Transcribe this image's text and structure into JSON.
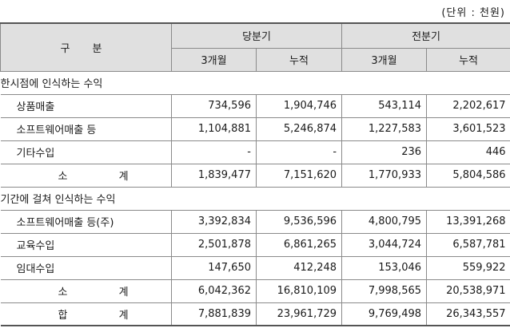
{
  "unit_note": "(단위 : 천원)",
  "header": {
    "gubun": "구 분",
    "current": "당분기",
    "prior": "전분기",
    "three_months": "3개월",
    "cumulative": "누적"
  },
  "sections": [
    {
      "title": "한시점에 인식하는 수익",
      "rows": [
        {
          "label": "상품매출",
          "values": [
            "734,596",
            "1,904,746",
            "543,114",
            "2,202,617"
          ]
        },
        {
          "label": "소프트웨어매출 등",
          "values": [
            "1,104,881",
            "5,246,874",
            "1,227,583",
            "3,601,523"
          ]
        },
        {
          "label": "기타수입",
          "values": [
            "-",
            "-",
            "236",
            "446"
          ]
        }
      ],
      "subtotal": {
        "label": "소 계",
        "values": [
          "1,839,477",
          "7,151,620",
          "1,770,933",
          "5,804,586"
        ]
      }
    },
    {
      "title": "기간에 걸쳐 인식하는 수익",
      "rows": [
        {
          "label": "소프트웨어매출 등(주)",
          "values": [
            "3,392,834",
            "9,536,596",
            "4,800,795",
            "13,391,268"
          ]
        },
        {
          "label": "교육수입",
          "values": [
            "2,501,878",
            "6,861,265",
            "3,044,724",
            "6,587,781"
          ]
        },
        {
          "label": "임대수입",
          "values": [
            "147,650",
            "412,248",
            "153,046",
            "559,922"
          ]
        }
      ],
      "subtotal": {
        "label": "소 계",
        "values": [
          "6,042,362",
          "16,810,109",
          "7,998,565",
          "20,538,971"
        ]
      }
    }
  ],
  "total": {
    "label": "합 계",
    "values": [
      "7,881,839",
      "23,961,729",
      "9,769,498",
      "26,343,557"
    ]
  }
}
